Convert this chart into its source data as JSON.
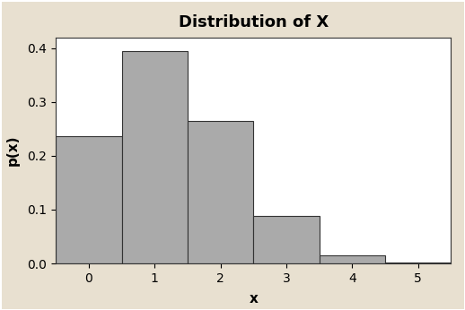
{
  "title": "Distribution of X",
  "xlabel": "x",
  "ylabel": "p(x)",
  "categories": [
    0,
    1,
    2,
    3,
    4,
    5
  ],
  "values": [
    0.237,
    0.395,
    0.265,
    0.088,
    0.015,
    0.001
  ],
  "bar_color": "#aaaaaa",
  "bar_edge_color": "#333333",
  "ylim": [
    0,
    0.42
  ],
  "yticks": [
    0.0,
    0.1,
    0.2,
    0.3,
    0.4
  ],
  "xticks": [
    0,
    1,
    2,
    3,
    4,
    5
  ],
  "background_outer": "#e8e0d0",
  "background_plot": "#ffffff",
  "title_fontsize": 13,
  "axis_label_fontsize": 11,
  "tick_fontsize": 10,
  "bar_width": 1.0,
  "edge_linewidth": 0.8
}
